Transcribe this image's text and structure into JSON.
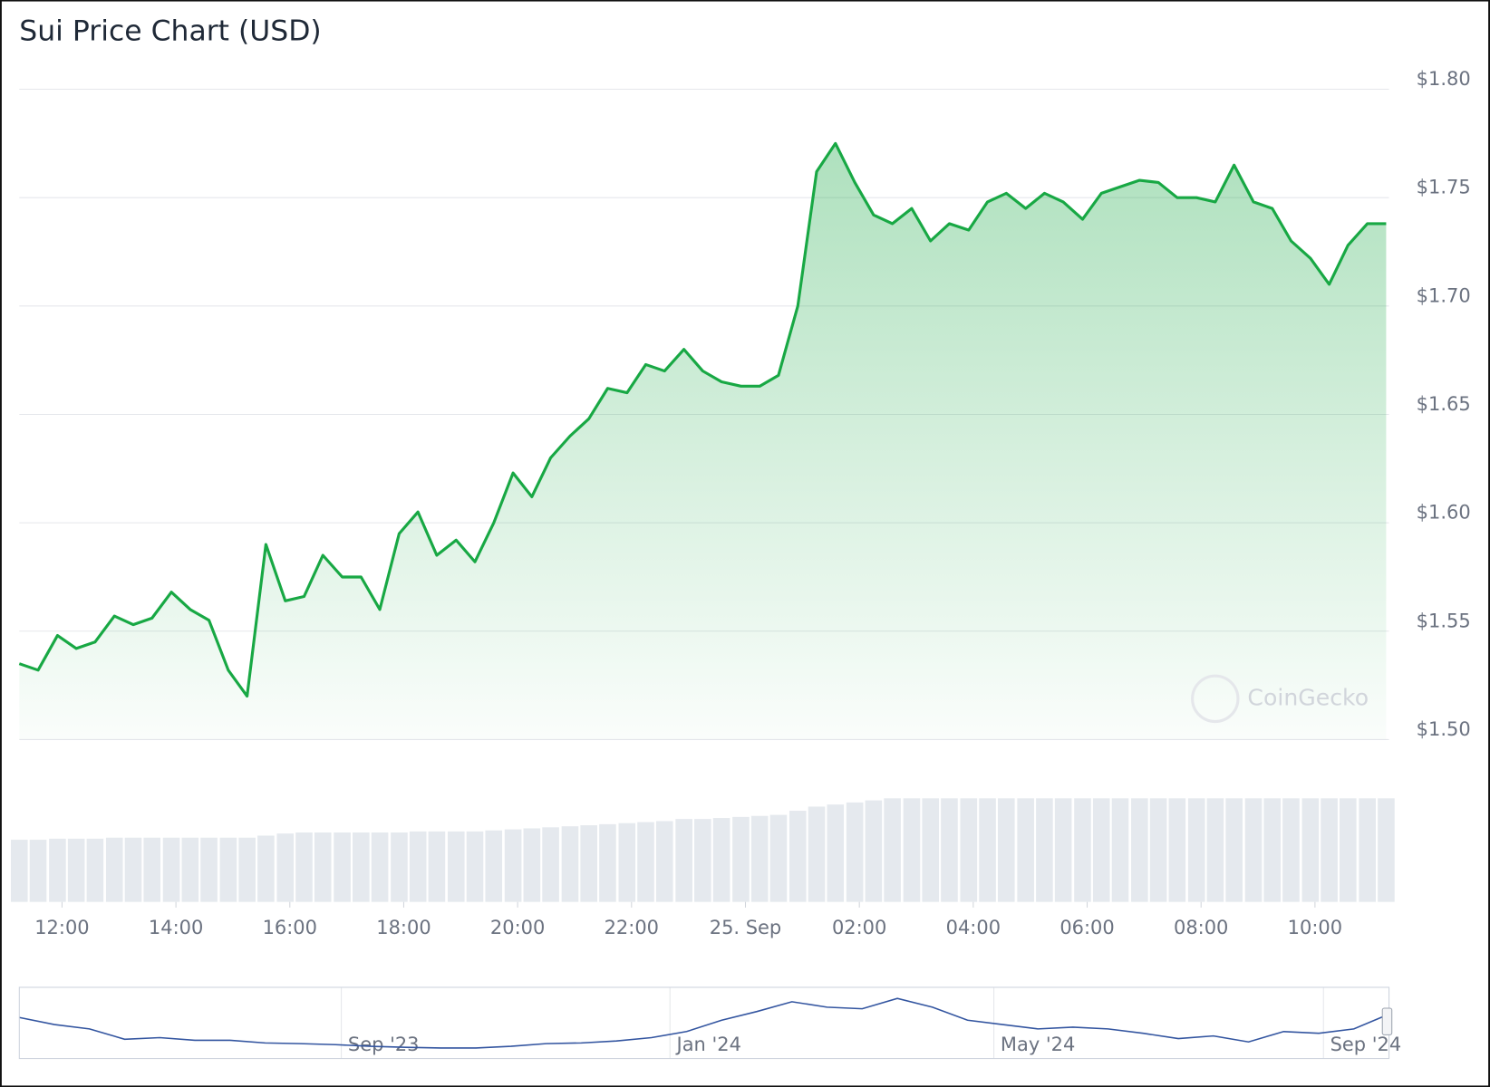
{
  "chart_data": {
    "type": "area",
    "title": "Sui Price Chart (USD)",
    "watermark": "CoinGecko",
    "color": "#18a844",
    "xlim": [
      11.25,
      35.3
    ],
    "xticks": [
      {
        "value": 12,
        "label": "12:00"
      },
      {
        "value": 14,
        "label": "14:00"
      },
      {
        "value": 16,
        "label": "16:00"
      },
      {
        "value": 18,
        "label": "18:00"
      },
      {
        "value": 20,
        "label": "20:00"
      },
      {
        "value": 22,
        "label": "22:00"
      },
      {
        "value": 24,
        "label": "25. Sep"
      },
      {
        "value": 26,
        "label": "02:00"
      },
      {
        "value": 28,
        "label": "04:00"
      },
      {
        "value": 30,
        "label": "06:00"
      },
      {
        "value": 32,
        "label": "08:00"
      },
      {
        "value": 34,
        "label": "10:00"
      }
    ],
    "ylim": [
      1.5,
      1.8
    ],
    "yticks": [
      {
        "value": 1.5,
        "label": "$1.50"
      },
      {
        "value": 1.55,
        "label": "$1.55"
      },
      {
        "value": 1.6,
        "label": "$1.60"
      },
      {
        "value": 1.65,
        "label": "$1.65"
      },
      {
        "value": 1.7,
        "label": "$1.70"
      },
      {
        "value": 1.75,
        "label": "$1.75"
      },
      {
        "value": 1.8,
        "label": "$1.80"
      }
    ],
    "grid": true,
    "x": [
      11.25,
      11.58,
      11.92,
      12.25,
      12.58,
      12.92,
      13.25,
      13.58,
      13.92,
      14.25,
      14.58,
      14.92,
      15.25,
      15.58,
      15.92,
      16.25,
      16.58,
      16.92,
      17.25,
      17.58,
      17.92,
      18.25,
      18.58,
      18.92,
      19.25,
      19.58,
      19.92,
      20.25,
      20.58,
      20.92,
      21.25,
      21.58,
      21.92,
      22.25,
      22.58,
      22.92,
      23.25,
      23.58,
      23.92,
      24.25,
      24.58,
      24.92,
      25.25,
      25.58,
      25.92,
      26.25,
      26.58,
      26.92,
      27.25,
      27.58,
      27.92,
      28.25,
      28.58,
      28.92,
      29.25,
      29.58,
      29.92,
      30.25,
      30.58,
      30.92,
      31.25,
      31.58,
      31.92,
      32.25,
      32.58,
      32.92,
      33.25,
      33.58,
      33.92,
      34.25,
      34.58,
      34.92,
      35.25
    ],
    "values": [
      1.535,
      1.532,
      1.548,
      1.542,
      1.545,
      1.557,
      1.553,
      1.556,
      1.568,
      1.56,
      1.555,
      1.532,
      1.52,
      1.59,
      1.564,
      1.566,
      1.585,
      1.575,
      1.575,
      1.56,
      1.595,
      1.605,
      1.585,
      1.592,
      1.582,
      1.6,
      1.623,
      1.612,
      1.63,
      1.64,
      1.648,
      1.662,
      1.66,
      1.673,
      1.67,
      1.68,
      1.67,
      1.665,
      1.663,
      1.663,
      1.668,
      1.7,
      1.762,
      1.775,
      1.757,
      1.742,
      1.738,
      1.745,
      1.73,
      1.738,
      1.735,
      1.748,
      1.752,
      1.745,
      1.752,
      1.748,
      1.74,
      1.752,
      1.755,
      1.758,
      1.757,
      1.75,
      1.75,
      1.748,
      1.765,
      1.748,
      1.745,
      1.73,
      1.722,
      1.71,
      1.728,
      1.738,
      1.738
    ],
    "volume_lim": [
      0,
      110
    ],
    "volume": [
      60,
      60,
      61,
      61,
      61,
      62,
      62,
      62,
      62,
      62,
      62,
      62,
      62,
      64,
      66,
      67,
      67,
      67,
      67,
      67,
      67,
      68,
      68,
      68,
      68,
      69,
      70,
      71,
      72,
      73,
      74,
      75,
      76,
      77,
      78,
      80,
      80,
      81,
      82,
      83,
      84,
      88,
      92,
      94,
      96,
      98,
      100,
      100,
      100,
      100,
      100,
      100,
      100,
      100,
      100,
      100,
      100,
      100,
      100,
      100,
      100,
      100,
      100,
      100,
      100,
      100,
      100,
      100,
      100,
      100,
      100,
      100,
      100
    ],
    "navigator": {
      "labels": [
        "Sep '23",
        "Jan '24",
        "May '24",
        "Sep '24"
      ],
      "ylim": [
        0.3,
        2.2
      ],
      "values": [
        1.44,
        1.23,
        1.1,
        0.79,
        0.84,
        0.76,
        0.76,
        0.68,
        0.66,
        0.63,
        0.58,
        0.55,
        0.53,
        0.53,
        0.58,
        0.66,
        0.68,
        0.74,
        0.84,
        1.02,
        1.36,
        1.62,
        1.91,
        1.75,
        1.7,
        2.01,
        1.75,
        1.36,
        1.23,
        1.1,
        1.15,
        1.1,
        0.97,
        0.81,
        0.89,
        0.71,
        1.02,
        0.97,
        1.1,
        1.54
      ]
    }
  }
}
